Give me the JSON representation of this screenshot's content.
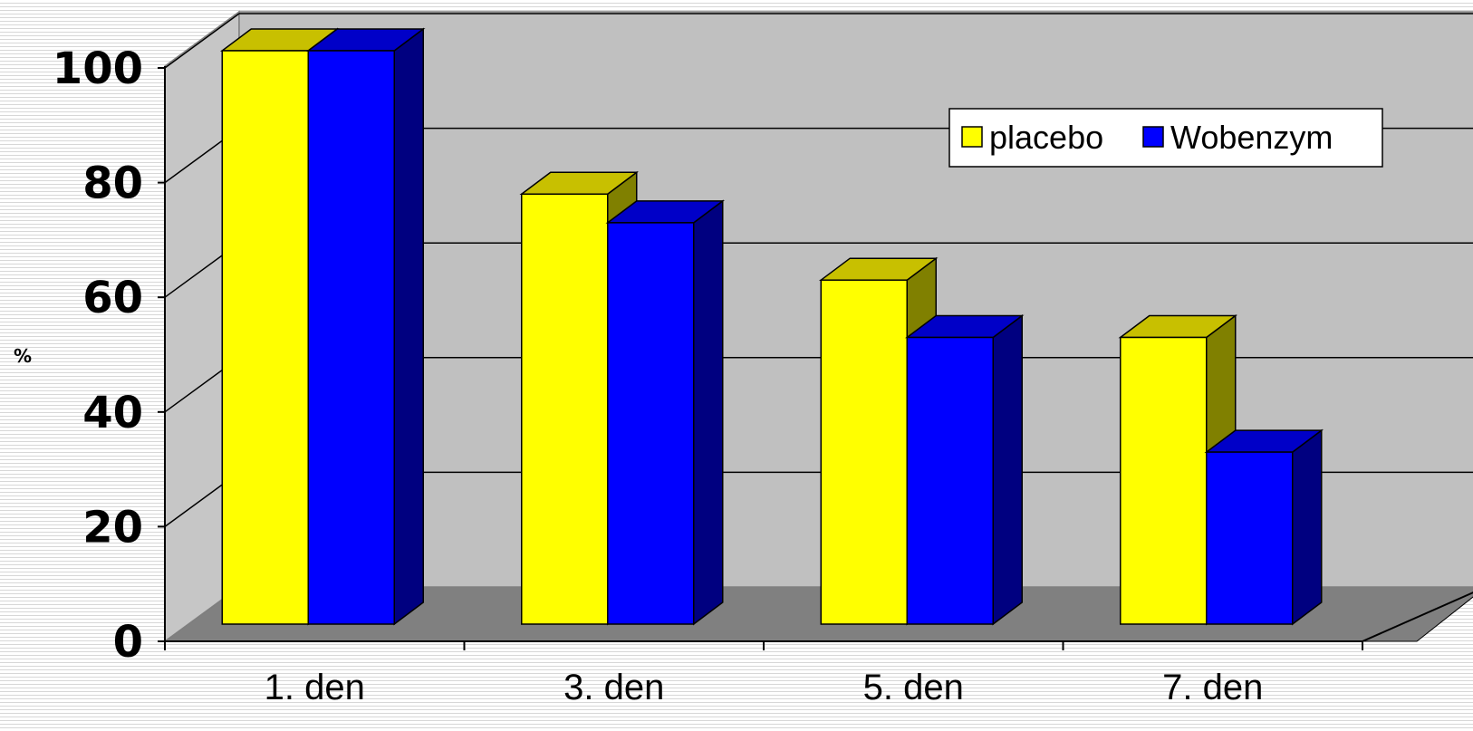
{
  "chart_data": {
    "type": "bar",
    "categories": [
      "1. den",
      "3. den",
      "5. den",
      "7. den"
    ],
    "series": [
      {
        "name": "placebo",
        "values": [
          100,
          75,
          60,
          50
        ],
        "color": "#ffff00",
        "top_color": "#c8c000",
        "side_color": "#808000"
      },
      {
        "name": "Wobenzym",
        "values": [
          100,
          70,
          50,
          30
        ],
        "color": "#0000ff",
        "top_color": "#0000c8",
        "side_color": "#000080"
      }
    ],
    "ylabel": "%",
    "ylim": [
      0,
      100
    ],
    "yticks": [
      0,
      20,
      40,
      60,
      80,
      100
    ],
    "grid": true,
    "legend": "top-right",
    "style": "3d-clustered-column",
    "wall_color": "#c0c0c0",
    "floor_color": "#808080"
  }
}
